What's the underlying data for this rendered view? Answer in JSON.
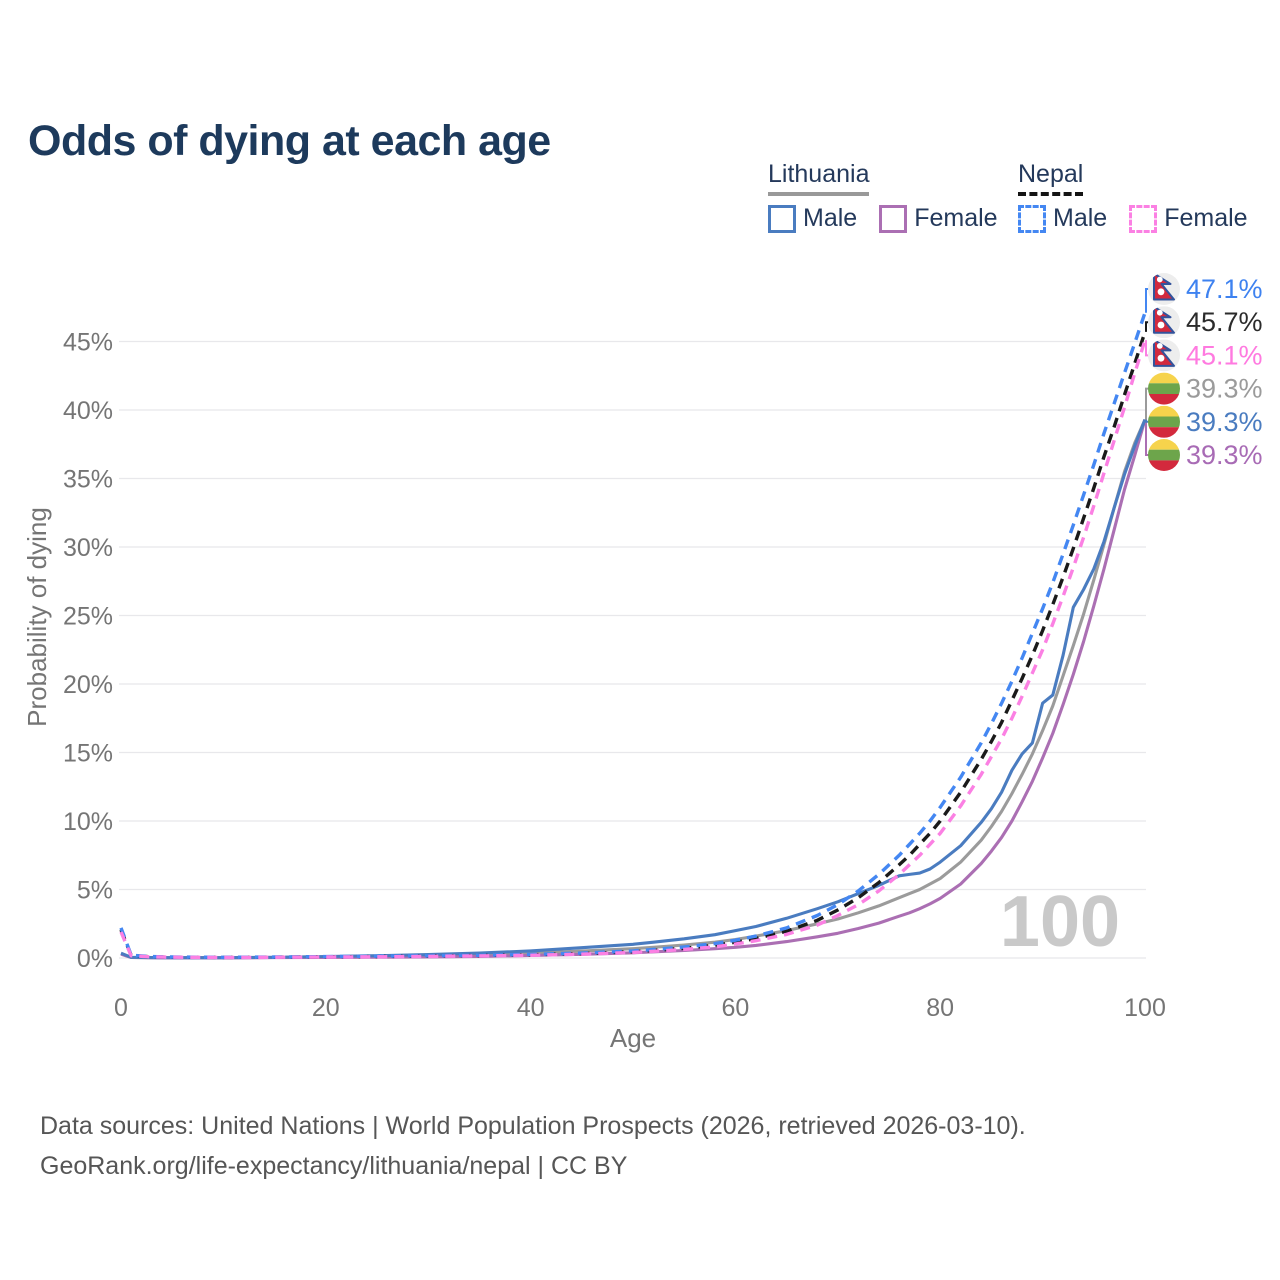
{
  "title": "Odds of dying at each age",
  "legend": {
    "groups": [
      {
        "name": "Lithuania",
        "underline_style": "solid",
        "underline_color": "#999999",
        "items": [
          {
            "label": "Male",
            "color": "#4a7cc0",
            "dashed": false
          },
          {
            "label": "Female",
            "color": "#ab6fb3",
            "dashed": false
          }
        ]
      },
      {
        "name": "Nepal",
        "underline_style": "dashed",
        "underline_color": "#141414",
        "items": [
          {
            "label": "Male",
            "color": "#4487f2",
            "dashed": true
          },
          {
            "label": "Female",
            "color": "#fb80e3",
            "dashed": true
          }
        ]
      }
    ]
  },
  "chart_data": {
    "type": "line",
    "title": "Odds of dying at each age",
    "xlabel": "Age",
    "ylabel": "Probability of dying",
    "xlim": [
      0,
      100
    ],
    "ylim": [
      0,
      47.5
    ],
    "grid": "horizontal",
    "legend_position": "top-right",
    "watermark": "100",
    "x_ticks": {
      "values": [
        0,
        20,
        40,
        60,
        80,
        100
      ],
      "labels": [
        "0",
        "20",
        "40",
        "60",
        "80",
        "100"
      ]
    },
    "y_ticks": {
      "values": [
        0,
        5,
        10,
        15,
        20,
        25,
        30,
        35,
        40,
        45
      ],
      "labels": [
        "0%",
        "5%",
        "10%",
        "15%",
        "20%",
        "25%",
        "30%",
        "35%",
        "40%",
        "45%"
      ]
    },
    "x": [
      0,
      1,
      3,
      5,
      10,
      15,
      20,
      25,
      30,
      35,
      40,
      45,
      50,
      52,
      55,
      58,
      60,
      62,
      65,
      68,
      70,
      72,
      74,
      76,
      77,
      78,
      79,
      80,
      82,
      84,
      85,
      86,
      87,
      88,
      89,
      90,
      91,
      92,
      93,
      94,
      95,
      96,
      97,
      98,
      99,
      100
    ],
    "series": [
      {
        "name": "Lithuania both sexes",
        "country": "Lithuania",
        "sex": "both",
        "color": "#9b9b9b",
        "dashed": false,
        "flag": "lithuania",
        "end_label": "39.3%",
        "end_label_color": "#9b9b9b",
        "annotation_row": 3,
        "values": [
          0.32,
          0.045,
          0.025,
          0.018,
          0.018,
          0.04,
          0.08,
          0.11,
          0.16,
          0.24,
          0.34,
          0.5,
          0.68,
          0.78,
          0.95,
          1.15,
          1.35,
          1.6,
          2.0,
          2.5,
          2.85,
          3.3,
          3.8,
          4.4,
          4.7,
          5.0,
          5.4,
          5.8,
          7.0,
          8.6,
          9.6,
          10.7,
          12.0,
          13.4,
          14.9,
          16.6,
          18.4,
          20.6,
          22.8,
          25.1,
          27.6,
          30.2,
          32.9,
          35.5,
          37.6,
          39.3
        ]
      },
      {
        "name": "Lithuania female",
        "country": "Lithuania",
        "sex": "female",
        "color": "#ab6fb3",
        "dashed": false,
        "flag": "lithuania",
        "end_label": "39.3%",
        "end_label_color": "#a86bb5",
        "annotation_row": 5,
        "values": [
          0.28,
          0.04,
          0.02,
          0.015,
          0.015,
          0.03,
          0.04,
          0.06,
          0.08,
          0.12,
          0.18,
          0.27,
          0.38,
          0.45,
          0.55,
          0.68,
          0.78,
          0.92,
          1.2,
          1.55,
          1.8,
          2.15,
          2.55,
          3.05,
          3.3,
          3.6,
          3.95,
          4.35,
          5.4,
          6.9,
          7.8,
          8.8,
          10.0,
          11.4,
          12.9,
          14.6,
          16.4,
          18.5,
          20.7,
          23.1,
          25.7,
          28.4,
          31.3,
          34.2,
          36.7,
          39.3
        ]
      },
      {
        "name": "Lithuania male",
        "country": "Lithuania",
        "sex": "male",
        "color": "#4a7cc0",
        "dashed": false,
        "flag": "lithuania",
        "end_label": "39.3%",
        "end_label_color": "#4a7cc0",
        "annotation_row": 4,
        "values": [
          0.35,
          0.05,
          0.03,
          0.02,
          0.02,
          0.05,
          0.11,
          0.17,
          0.25,
          0.36,
          0.52,
          0.75,
          1.0,
          1.15,
          1.4,
          1.7,
          2.0,
          2.3,
          2.9,
          3.6,
          4.1,
          4.7,
          5.3,
          6.0,
          6.1,
          6.2,
          6.5,
          7.0,
          8.2,
          9.9,
          10.9,
          12.1,
          13.7,
          14.9,
          15.7,
          18.6,
          19.2,
          22.1,
          25.6,
          26.9,
          28.4,
          30.4,
          32.9,
          35.3,
          37.4,
          39.3
        ]
      },
      {
        "name": "Nepal both sexes",
        "country": "Nepal",
        "sex": "both",
        "color": "#1a1a1a",
        "dashed": true,
        "flag": "nepal",
        "end_label": "45.7%",
        "end_label_color": "#2b2b2b",
        "annotation_row": 1,
        "values": [
          2.05,
          0.18,
          0.09,
          0.06,
          0.045,
          0.06,
          0.09,
          0.11,
          0.14,
          0.18,
          0.23,
          0.32,
          0.46,
          0.55,
          0.71,
          0.93,
          1.15,
          1.42,
          1.95,
          2.75,
          3.5,
          4.4,
          5.5,
          6.8,
          7.5,
          8.3,
          9.1,
          10.0,
          12.1,
          14.5,
          15.8,
          17.2,
          18.8,
          20.4,
          22.1,
          23.9,
          25.8,
          27.8,
          29.9,
          32.1,
          34.3,
          36.6,
          38.8,
          41.1,
          43.4,
          45.7
        ]
      },
      {
        "name": "Nepal male",
        "country": "Nepal",
        "sex": "male",
        "color": "#4487f2",
        "dashed": true,
        "flag": "nepal",
        "end_label": "47.1%",
        "end_label_color": "#3e82f0",
        "annotation_row": 0,
        "values": [
          2.2,
          0.2,
          0.1,
          0.07,
          0.05,
          0.07,
          0.1,
          0.13,
          0.16,
          0.2,
          0.26,
          0.36,
          0.52,
          0.62,
          0.8,
          1.05,
          1.3,
          1.6,
          2.2,
          3.1,
          3.9,
          4.9,
          6.1,
          7.5,
          8.3,
          9.1,
          10.0,
          11.0,
          13.2,
          15.7,
          17.1,
          18.6,
          20.2,
          21.9,
          23.7,
          25.5,
          27.4,
          29.5,
          31.6,
          33.8,
          36.0,
          38.3,
          40.5,
          42.7,
          44.9,
          47.1
        ]
      },
      {
        "name": "Nepal female",
        "country": "Nepal",
        "sex": "female",
        "color": "#fb80e3",
        "dashed": true,
        "flag": "nepal",
        "end_label": "45.1%",
        "end_label_color": "#ff7ae0",
        "annotation_row": 2,
        "values": [
          1.9,
          0.16,
          0.08,
          0.055,
          0.04,
          0.05,
          0.07,
          0.09,
          0.12,
          0.15,
          0.2,
          0.28,
          0.41,
          0.49,
          0.63,
          0.82,
          1.02,
          1.26,
          1.72,
          2.4,
          3.1,
          3.9,
          4.9,
          6.1,
          6.8,
          7.5,
          8.3,
          9.1,
          11.1,
          13.4,
          14.7,
          16.0,
          17.5,
          19.1,
          20.8,
          22.5,
          24.4,
          26.4,
          28.5,
          30.7,
          33.0,
          35.4,
          37.8,
          40.2,
          42.7,
          45.1
        ]
      }
    ],
    "flag_colors": {
      "lithuania": {
        "yellow": "#f6d34c",
        "green": "#6da54b",
        "red": "#d3293d"
      },
      "nepal": {
        "background": "#ededed",
        "crimson": "#d2293e",
        "blue": "#33539c",
        "white": "#ffffff"
      }
    }
  },
  "footer": {
    "line1": "Data sources: United Nations | World Population Prospects (2026, retrieved 2026-03-10).",
    "line2": "GeoRank.org/life-expectancy/lithuania/nepal | CC BY"
  }
}
